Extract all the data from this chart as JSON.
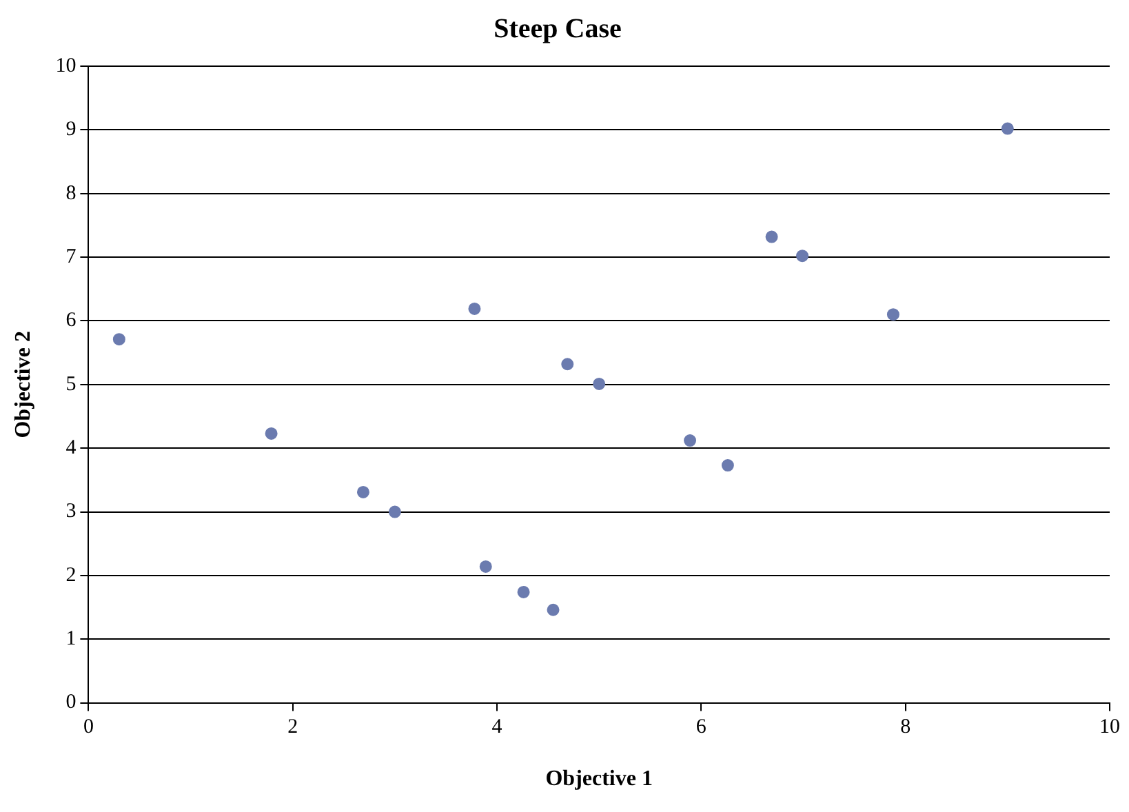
{
  "chart_data": {
    "type": "scatter",
    "title": "Steep Case",
    "xlabel": "Objective 1",
    "ylabel": "Objective 2",
    "x": [
      0.3,
      1.79,
      2.69,
      3.0,
      3.78,
      3.89,
      4.26,
      4.55,
      4.69,
      5.0,
      5.89,
      6.26,
      6.69,
      6.99,
      7.88,
      9.0
    ],
    "series": [
      {
        "color": "#6b7baf",
        "values": [
          5.71,
          4.23,
          3.31,
          3.0,
          6.19,
          2.14,
          1.74,
          1.46,
          5.32,
          5.01,
          4.12,
          3.73,
          7.32,
          7.02,
          6.1,
          9.02
        ]
      }
    ],
    "xlim": [
      0,
      10
    ],
    "xticks": [
      0,
      2,
      4,
      6,
      8,
      10
    ],
    "ylim": [
      0,
      10
    ],
    "yticks": [
      0,
      1,
      2,
      3,
      4,
      5,
      6,
      7,
      8,
      9,
      10
    ],
    "grid": "y",
    "legend": false,
    "marker": "circle"
  }
}
